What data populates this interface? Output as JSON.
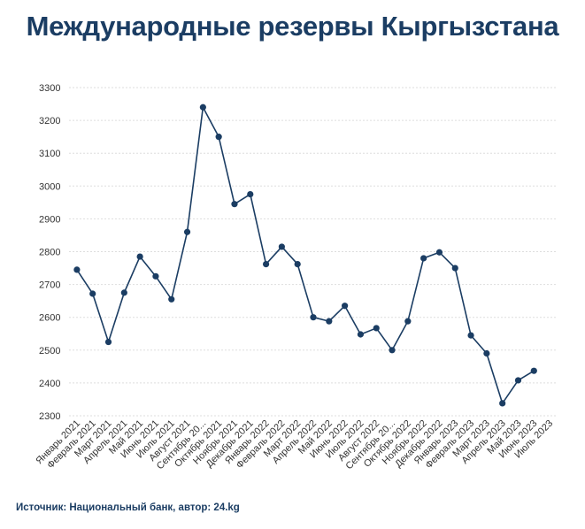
{
  "title": "Международные резервы Кыргызстана",
  "source": "Источник: Национальный банк, автор: 24.kg",
  "colors": {
    "title": "#1b3d63",
    "line": "#1b3d63",
    "grid": "#dddddd",
    "text": "#333333"
  },
  "chart_data": {
    "type": "line",
    "title": "Международные резервы Кыргызстана",
    "xlabel": "",
    "ylabel": "",
    "ylim": [
      2300,
      3300
    ],
    "yticks": [
      2300,
      2400,
      2500,
      2600,
      2700,
      2800,
      2900,
      3000,
      3100,
      3200,
      3300
    ],
    "grid": true,
    "legend": "none",
    "categories": [
      "Январь 2021",
      "Февраль 2021",
      "Март 2021",
      "Апрель 2021",
      "Май 2021",
      "Июнь 2021",
      "Июль 2021",
      "Август 2021",
      "Сентябрь 20...",
      "Октябрь 2021",
      "Ноябрь 2021",
      "Декабрь 2021",
      "Январь 2022",
      "Февраль 2022",
      "Март 2022",
      "Апрель 2022",
      "Май 2022",
      "Июнь 2022",
      "Июль 2022",
      "Август 2022",
      "Сентябрь 20...",
      "Октябрь 2022",
      "Ноябрь 2022",
      "Декабрь 2022",
      "Январь 2023",
      "Февраль 2023",
      "Март 2023",
      "Апрель 2023",
      "Май 2023",
      "Июнь 2023",
      "Июль 2023"
    ],
    "series": [
      {
        "values": [
          2745,
          2672,
          2525,
          2675,
          2785,
          2725,
          2655,
          2860,
          3240,
          3150,
          2945,
          2975,
          2762,
          2815,
          2762,
          2600,
          2588,
          2635,
          2548,
          2567,
          2500,
          2588,
          2780,
          2798,
          2750,
          2545,
          2490,
          2338,
          2408,
          2437,
          null
        ]
      }
    ]
  }
}
